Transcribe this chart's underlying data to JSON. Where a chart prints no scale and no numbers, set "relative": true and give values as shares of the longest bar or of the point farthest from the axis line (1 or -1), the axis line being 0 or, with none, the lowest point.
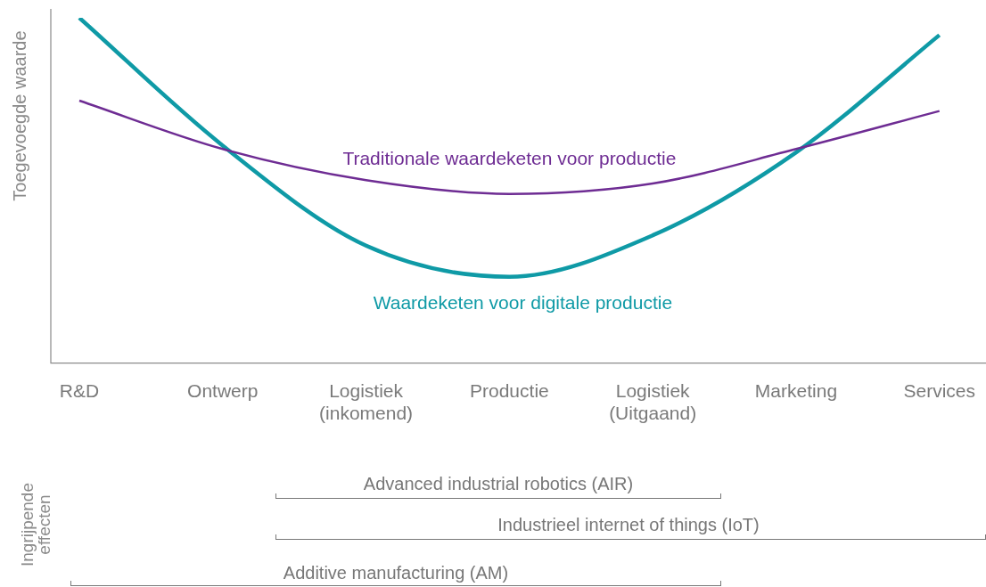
{
  "chart_data": {
    "type": "line",
    "relative": true,
    "ylabel": "Toegevoegde waarde",
    "categories": [
      "R&D",
      "Ontwerp",
      "Logistiek\n(inkomend)",
      "Productie",
      "Logistiek\n(Uitgaand)",
      "Marketing",
      "Services"
    ],
    "series": [
      {
        "name": "Traditionale waardeketen voor productie",
        "color": "#6e2c93",
        "values": [
          0.76,
          0.62,
          0.53,
          0.49,
          0.52,
          0.62,
          0.73
        ]
      },
      {
        "name": "Waardeketen voor digitale productie",
        "color": "#0f9aa6",
        "values": [
          1,
          0.63,
          0.34,
          0.25,
          0.37,
          0.61,
          0.95
        ]
      }
    ],
    "annotations": [
      "Ingrijpende effecten",
      "Advanced industrial robotics (AIR)",
      "Industrieel internet of things (IoT)",
      "Additive manufacturing (AM)"
    ],
    "legend": false,
    "grid": false,
    "marker": "none",
    "line_style": "solid"
  }
}
